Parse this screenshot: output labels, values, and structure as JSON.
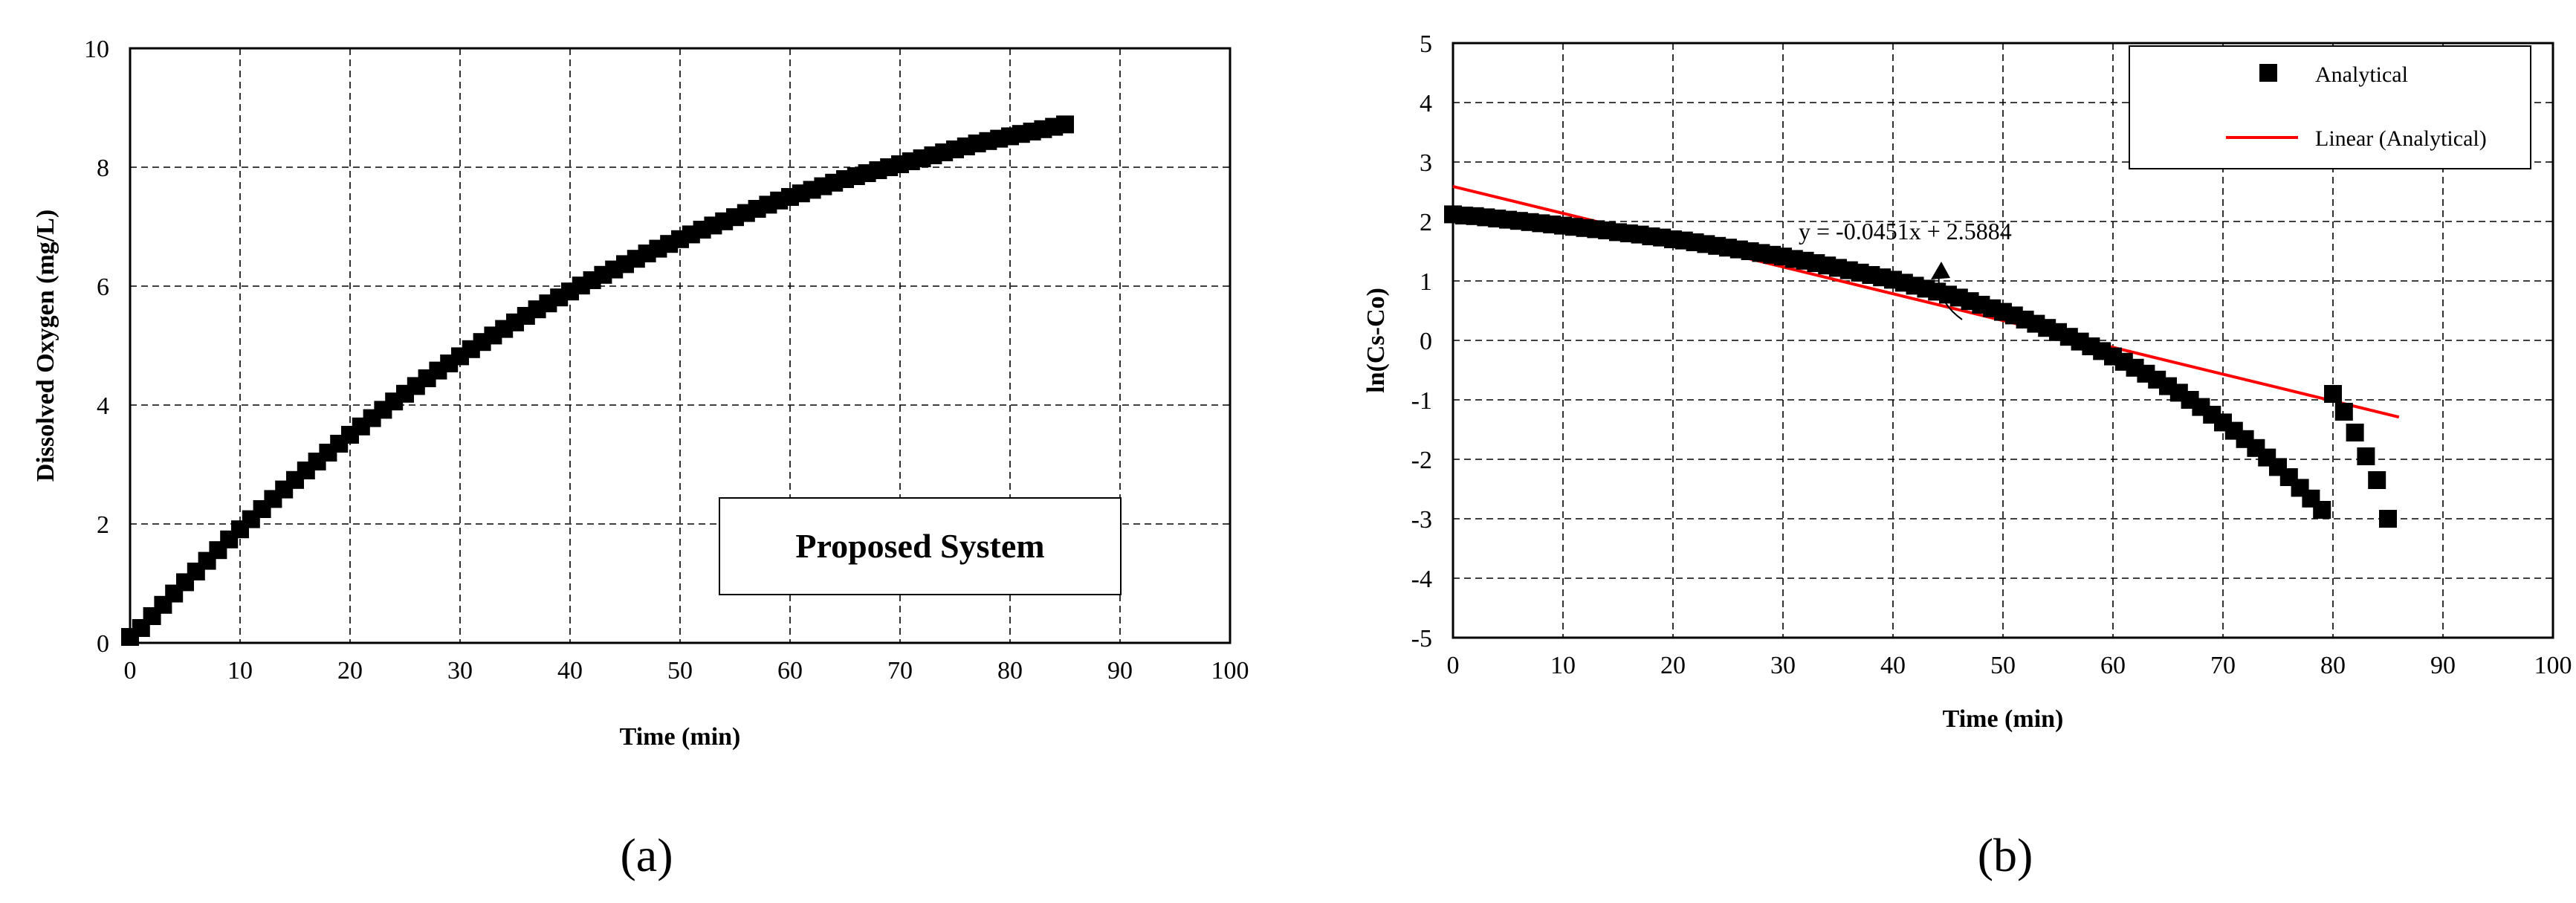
{
  "chart_data": [
    {
      "type": "scatter",
      "panel_label": "(a)",
      "xlabel": "Time (min)",
      "ylabel": "Dissolved Oxygen (mg/L)",
      "xlim": [
        0,
        100
      ],
      "ylim": [
        0,
        10
      ],
      "xticks": [
        0,
        10,
        20,
        30,
        40,
        50,
        60,
        70,
        80,
        90,
        100
      ],
      "yticks": [
        0,
        2,
        4,
        6,
        8,
        10
      ],
      "grid": true,
      "annotation": "Proposed System",
      "series": [
        {
          "marker": "square",
          "color": "#000000",
          "x": [
            0,
            1,
            2,
            3,
            4,
            5,
            6,
            7,
            8,
            9,
            10,
            11,
            12,
            13,
            14,
            15,
            16,
            17,
            18,
            19,
            20,
            21,
            22,
            23,
            24,
            25,
            26,
            27,
            28,
            29,
            30,
            31,
            32,
            33,
            34,
            35,
            36,
            37,
            38,
            39,
            40,
            41,
            42,
            43,
            44,
            45,
            46,
            47,
            48,
            49,
            50,
            51,
            52,
            53,
            54,
            55,
            56,
            57,
            58,
            59,
            60,
            61,
            62,
            63,
            64,
            65,
            66,
            67,
            68,
            69,
            70,
            71,
            72,
            73,
            74,
            75,
            76,
            77,
            78,
            79,
            80,
            81,
            82,
            83,
            84,
            85
          ],
          "y": [
            0.1,
            0.25,
            0.45,
            0.64,
            0.83,
            1.02,
            1.2,
            1.38,
            1.56,
            1.74,
            1.91,
            2.08,
            2.25,
            2.42,
            2.58,
            2.74,
            2.9,
            3.05,
            3.2,
            3.35,
            3.5,
            3.64,
            3.78,
            3.92,
            4.06,
            4.19,
            4.32,
            4.45,
            4.58,
            4.7,
            4.82,
            4.94,
            5.06,
            5.17,
            5.28,
            5.39,
            5.5,
            5.61,
            5.71,
            5.81,
            5.91,
            6.01,
            6.1,
            6.19,
            6.28,
            6.37,
            6.46,
            6.55,
            6.63,
            6.71,
            6.79,
            6.87,
            6.95,
            7.02,
            7.09,
            7.16,
            7.23,
            7.3,
            7.37,
            7.44,
            7.5,
            7.56,
            7.62,
            7.68,
            7.74,
            7.8,
            7.85,
            7.9,
            7.95,
            8.0,
            8.05,
            8.1,
            8.15,
            8.2,
            8.25,
            8.3,
            8.35,
            8.4,
            8.44,
            8.48,
            8.52,
            8.56,
            8.6,
            8.64,
            8.68,
            8.72
          ]
        }
      ]
    },
    {
      "type": "scatter",
      "panel_label": "(b)",
      "xlabel": "Time (min)",
      "ylabel": "ln(Cs-Co)",
      "xlim": [
        0,
        100
      ],
      "ylim": [
        -5,
        5
      ],
      "xticks": [
        0,
        10,
        20,
        30,
        40,
        50,
        60,
        70,
        80,
        90,
        100
      ],
      "yticks": [
        -5,
        -4,
        -3,
        -2,
        -1,
        0,
        1,
        2,
        3,
        4,
        5
      ],
      "grid": true,
      "legend_position": "top-right",
      "equation": "y = -0.0451x + 2.5884",
      "series": [
        {
          "name": "Analytical",
          "marker": "square",
          "color": "#000000",
          "x": [
            0,
            1,
            2,
            3,
            4,
            5,
            6,
            7,
            8,
            9,
            10,
            11,
            12,
            13,
            14,
            15,
            16,
            17,
            18,
            19,
            20,
            21,
            22,
            23,
            24,
            25,
            26,
            27,
            28,
            29,
            30,
            31,
            32,
            33,
            34,
            35,
            36,
            37,
            38,
            39,
            40,
            41,
            42,
            43,
            44,
            45,
            46,
            47,
            48,
            49,
            50,
            51,
            52,
            53,
            54,
            55,
            56,
            57,
            58,
            59,
            60,
            61,
            62,
            63,
            64,
            65,
            66,
            67,
            68,
            69,
            70,
            71,
            72,
            73,
            74,
            75,
            76,
            77,
            78,
            79,
            80,
            81,
            82,
            83,
            84,
            85
          ],
          "y": [
            2.12,
            2.1,
            2.09,
            2.07,
            2.05,
            2.03,
            2.01,
            1.99,
            1.97,
            1.95,
            1.93,
            1.91,
            1.89,
            1.87,
            1.85,
            1.82,
            1.8,
            1.78,
            1.75,
            1.73,
            1.7,
            1.68,
            1.65,
            1.62,
            1.59,
            1.56,
            1.53,
            1.5,
            1.47,
            1.44,
            1.41,
            1.37,
            1.34,
            1.3,
            1.26,
            1.22,
            1.18,
            1.14,
            1.1,
            1.06,
            1.02,
            0.97,
            0.92,
            0.87,
            0.82,
            0.77,
            0.72,
            0.66,
            0.6,
            0.54,
            0.48,
            0.42,
            0.35,
            0.28,
            0.21,
            0.14,
            0.06,
            -0.02,
            -0.1,
            -0.18,
            -0.27,
            -0.36,
            -0.46,
            -0.56,
            -0.66,
            -0.77,
            -0.88,
            -1.0,
            -1.12,
            -1.25,
            -1.38,
            -1.52,
            -1.66,
            -1.81,
            -1.97,
            -2.13,
            -2.3,
            -2.48,
            -2.66,
            -2.85,
            -0.9,
            -1.2,
            -1.55,
            -1.95,
            -2.35,
            -3.0
          ]
        },
        {
          "name": "Linear (Analytical)",
          "type": "line",
          "color": "#ff0000",
          "x": [
            0,
            86
          ],
          "y": [
            2.5884,
            -1.29
          ]
        }
      ]
    }
  ]
}
